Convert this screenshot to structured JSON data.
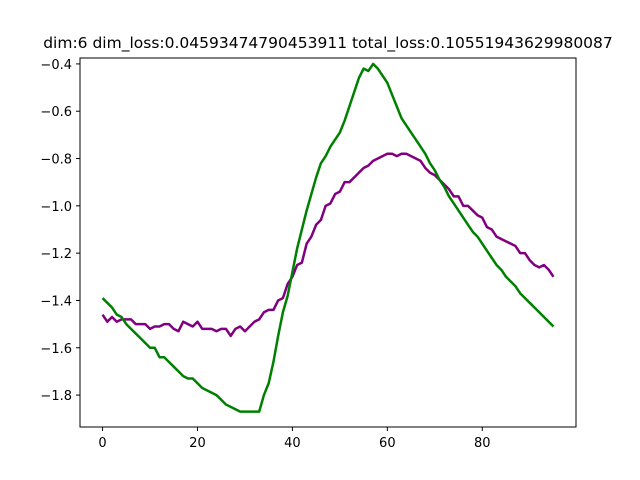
{
  "chart_data": {
    "type": "line",
    "title": "dim:6 dim_loss:0.04593474790453911 total_loss:0.10551943629980087",
    "xlabel": "",
    "ylabel": "",
    "xlim": [
      -4.75,
      99.75
    ],
    "ylim": [
      -1.935,
      -0.375
    ],
    "grid": false,
    "legend": "none",
    "xticks": [
      0,
      20,
      40,
      60,
      80
    ],
    "yticks": [
      -1.8,
      -1.6,
      -1.4,
      -1.2,
      -1.0,
      -0.8,
      -0.6,
      -0.4
    ],
    "xtick_labels": [
      "0",
      "20",
      "40",
      "60",
      "80"
    ],
    "ytick_labels": [
      "−1.8",
      "−1.6",
      "−1.4",
      "−1.2",
      "−1.0",
      "−0.8",
      "−0.6",
      "−0.4"
    ],
    "x": [
      0,
      1,
      2,
      3,
      4,
      5,
      6,
      7,
      8,
      9,
      10,
      11,
      12,
      13,
      14,
      15,
      16,
      17,
      18,
      19,
      20,
      21,
      22,
      23,
      24,
      25,
      26,
      27,
      28,
      29,
      30,
      31,
      32,
      33,
      34,
      35,
      36,
      37,
      38,
      39,
      40,
      41,
      42,
      43,
      44,
      45,
      46,
      47,
      48,
      49,
      50,
      51,
      52,
      53,
      54,
      55,
      56,
      57,
      58,
      59,
      60,
      61,
      62,
      63,
      64,
      65,
      66,
      67,
      68,
      69,
      70,
      71,
      72,
      73,
      74,
      75,
      76,
      77,
      78,
      79,
      80,
      81,
      82,
      83,
      84,
      85,
      86,
      87,
      88,
      89,
      90,
      91,
      92,
      93,
      94,
      95
    ],
    "series": [
      {
        "color": "#800080",
        "values": [
          -1.46,
          -1.49,
          -1.47,
          -1.49,
          -1.48,
          -1.48,
          -1.48,
          -1.5,
          -1.5,
          -1.5,
          -1.52,
          -1.51,
          -1.51,
          -1.5,
          -1.5,
          -1.52,
          -1.53,
          -1.49,
          -1.5,
          -1.51,
          -1.49,
          -1.52,
          -1.52,
          -1.52,
          -1.53,
          -1.52,
          -1.52,
          -1.55,
          -1.52,
          -1.51,
          -1.53,
          -1.51,
          -1.49,
          -1.48,
          -1.45,
          -1.44,
          -1.44,
          -1.4,
          -1.39,
          -1.33,
          -1.3,
          -1.25,
          -1.24,
          -1.16,
          -1.13,
          -1.08,
          -1.06,
          -1.0,
          -0.99,
          -0.95,
          -0.94,
          -0.9,
          -0.9,
          -0.88,
          -0.86,
          -0.84,
          -0.83,
          -0.81,
          -0.8,
          -0.79,
          -0.78,
          -0.78,
          -0.79,
          -0.78,
          -0.78,
          -0.79,
          -0.8,
          -0.81,
          -0.84,
          -0.86,
          -0.87,
          -0.89,
          -0.91,
          -0.93,
          -0.96,
          -0.96,
          -1.0,
          -1.0,
          -1.02,
          -1.04,
          -1.05,
          -1.09,
          -1.1,
          -1.13,
          -1.14,
          -1.15,
          -1.16,
          -1.17,
          -1.2,
          -1.2,
          -1.23,
          -1.25,
          -1.26,
          -1.25,
          -1.27,
          -1.3
        ]
      },
      {
        "color": "#008000",
        "values": [
          -1.39,
          -1.41,
          -1.43,
          -1.46,
          -1.47,
          -1.5,
          -1.52,
          -1.54,
          -1.56,
          -1.58,
          -1.6,
          -1.6,
          -1.64,
          -1.64,
          -1.66,
          -1.68,
          -1.7,
          -1.72,
          -1.73,
          -1.73,
          -1.75,
          -1.77,
          -1.78,
          -1.79,
          -1.8,
          -1.82,
          -1.84,
          -1.85,
          -1.86,
          -1.87,
          -1.87,
          -1.87,
          -1.87,
          -1.87,
          -1.8,
          -1.75,
          -1.66,
          -1.55,
          -1.45,
          -1.38,
          -1.28,
          -1.18,
          -1.1,
          -1.02,
          -0.95,
          -0.88,
          -0.82,
          -0.79,
          -0.75,
          -0.72,
          -0.69,
          -0.64,
          -0.58,
          -0.52,
          -0.46,
          -0.42,
          -0.43,
          -0.4,
          -0.42,
          -0.45,
          -0.48,
          -0.53,
          -0.58,
          -0.63,
          -0.66,
          -0.69,
          -0.72,
          -0.75,
          -0.78,
          -0.82,
          -0.85,
          -0.89,
          -0.92,
          -0.96,
          -0.99,
          -1.02,
          -1.05,
          -1.08,
          -1.11,
          -1.13,
          -1.16,
          -1.19,
          -1.22,
          -1.25,
          -1.27,
          -1.3,
          -1.32,
          -1.34,
          -1.37,
          -1.39,
          -1.41,
          -1.43,
          -1.45,
          -1.47,
          -1.49,
          -1.51
        ]
      }
    ]
  }
}
